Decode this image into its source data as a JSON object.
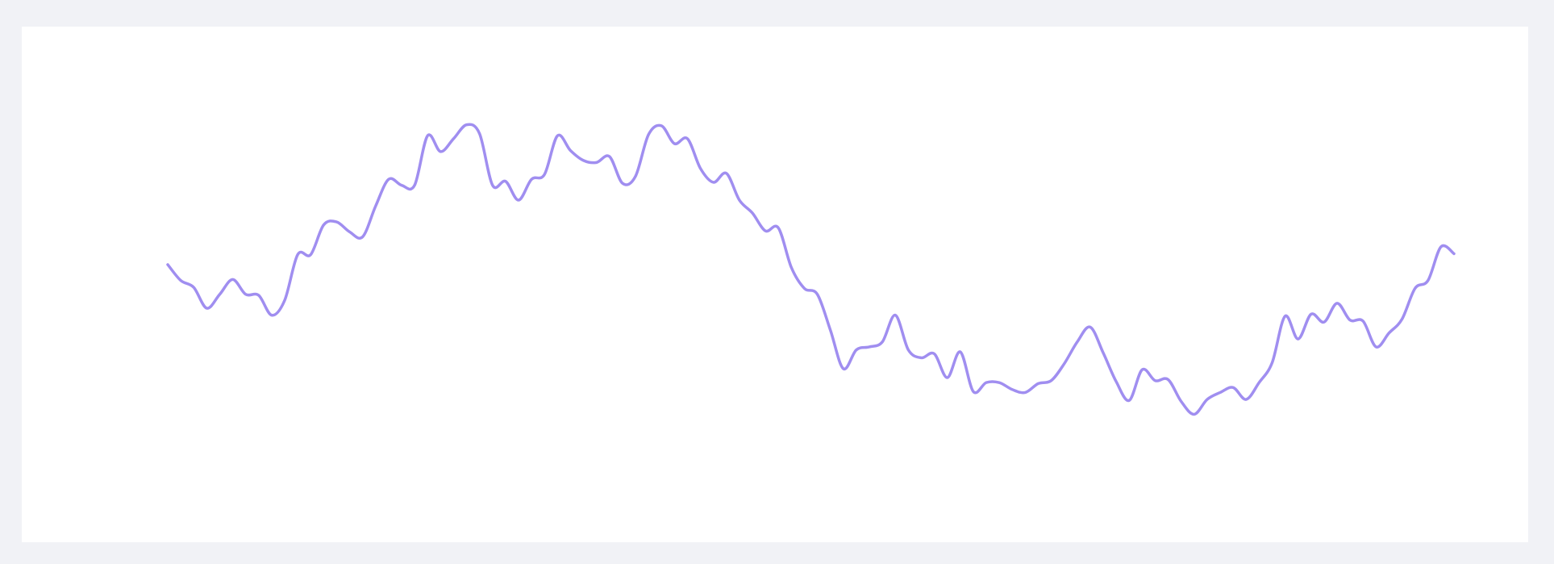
{
  "chart_data": {
    "type": "line",
    "color": "#a08ef0",
    "ylim": [
      0,
      520
    ],
    "values": [
      280,
      264,
      257,
      236,
      250,
      265,
      250,
      249,
      229,
      244,
      290,
      290,
      320,
      323,
      313,
      308,
      339,
      366,
      360,
      360,
      410,
      394,
      407,
      421,
      412,
      360,
      364,
      345,
      366,
      371,
      410,
      395,
      385,
      383,
      389,
      362,
      369,
      411,
      420,
      402,
      407,
      377,
      363,
      372,
      345,
      332,
      314,
      317,
      277,
      256,
      250,
      214,
      175,
      194,
      197,
      202,
      229,
      194,
      186,
      190,
      166,
      192,
      152,
      161,
      161,
      154,
      151,
      160,
      163,
      180,
      202,
      217,
      191,
      162,
      143,
      174,
      163,
      164,
      142,
      129,
      144,
      151,
      156,
      144,
      161,
      181,
      228,
      205,
      230,
      222,
      241,
      224,
      223,
      197,
      211,
      225,
      256,
      264,
      298,
      291
    ]
  }
}
